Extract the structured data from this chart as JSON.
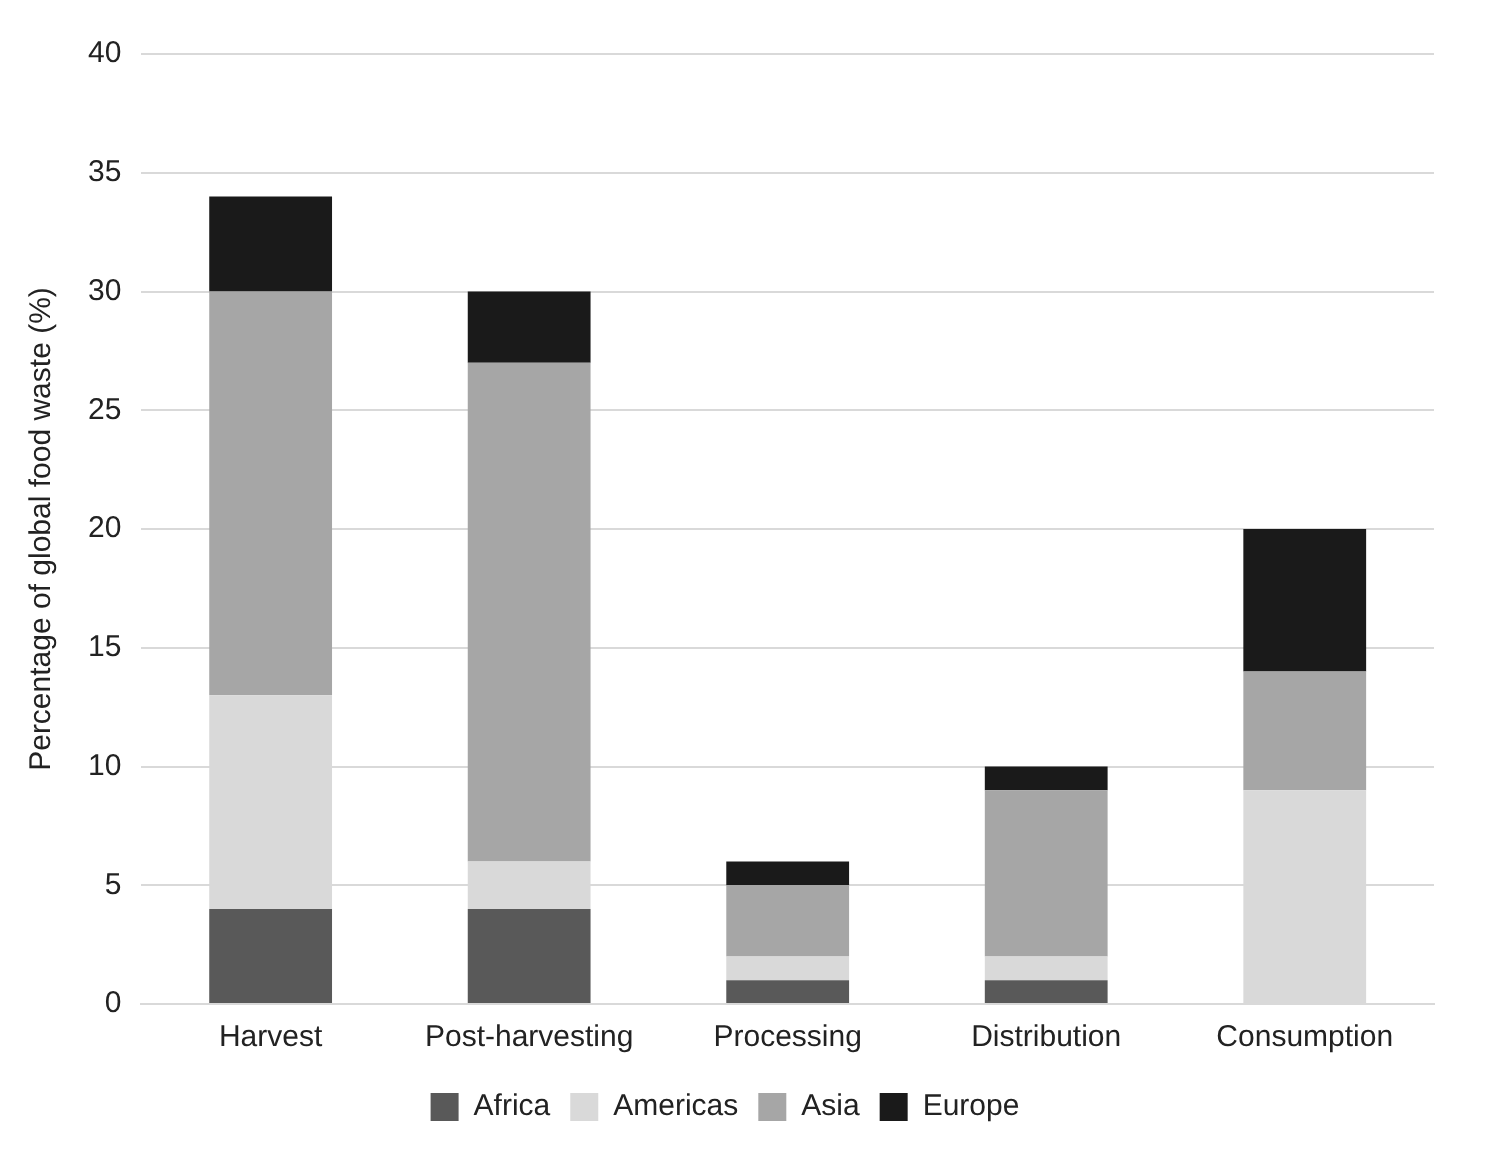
{
  "chart_data": {
    "type": "bar",
    "stacked": true,
    "ylabel": "Percentage of global food waste (%)",
    "categories": [
      "Harvest",
      "Post-harvesting",
      "Processing",
      "Distribution",
      "Consumption"
    ],
    "series": [
      {
        "name": "Africa",
        "color": "#595959",
        "values": [
          4,
          4,
          1,
          1,
          0
        ]
      },
      {
        "name": "Americas",
        "color": "#d9d9d9",
        "values": [
          9,
          2,
          1,
          1,
          9
        ]
      },
      {
        "name": "Asia",
        "color": "#a6a6a6",
        "values": [
          17,
          21,
          3,
          7,
          5
        ]
      },
      {
        "name": "Europe",
        "color": "#1a1a1a",
        "values": [
          4,
          3,
          1,
          1,
          6
        ]
      }
    ],
    "ylim": [
      0,
      40
    ],
    "yticks": [
      0,
      5,
      10,
      15,
      20,
      25,
      30,
      35,
      40
    ],
    "grid": "y",
    "legend": "bottom"
  }
}
